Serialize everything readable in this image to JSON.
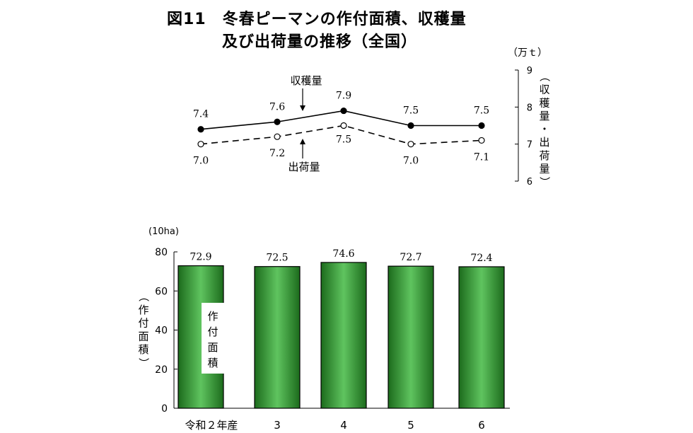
{
  "title": {
    "line1": "図11　冬春ピーマンの作付面積、収穫量",
    "line2": "及び出荷量の推移（全国）"
  },
  "chart_data": [
    {
      "type": "line",
      "unit": "（万ｔ）",
      "ylabel": "（収穫量・出荷量）",
      "ylim": [
        6,
        9
      ],
      "yticks": [
        "6",
        "7",
        "8",
        "9"
      ],
      "categories": [
        "令和２年産",
        "3",
        "4",
        "5",
        "6"
      ],
      "series": [
        {
          "name": "収穫量",
          "values": [
            7.4,
            7.6,
            7.9,
            7.5,
            7.5
          ],
          "labels": [
            "7.4",
            "7.6",
            "7.9",
            "7.5",
            "7.5"
          ],
          "style": "solid",
          "marker": "filled"
        },
        {
          "name": "出荷量",
          "values": [
            7.0,
            7.2,
            7.5,
            7.0,
            7.1
          ],
          "labels": [
            "7.0",
            "7.2",
            "7.5",
            "7.0",
            "7.1"
          ],
          "style": "dashed",
          "marker": "open"
        }
      ]
    },
    {
      "type": "bar",
      "unit": "(10ha)",
      "ylabel": "（作付面積）",
      "ylim": [
        0,
        80
      ],
      "yticks": [
        "0",
        "20",
        "40",
        "60",
        "80"
      ],
      "categories": [
        "令和２年産",
        "3",
        "4",
        "5",
        "6"
      ],
      "series": [
        {
          "name": "作付面積",
          "values": [
            72.9,
            72.5,
            74.6,
            72.7,
            72.4
          ],
          "labels": [
            "72.9",
            "72.5",
            "74.6",
            "72.7",
            "72.4"
          ]
        }
      ],
      "colors": {
        "bar_dark": "#1c6b1c",
        "bar_light": "#5fc45f"
      }
    }
  ]
}
